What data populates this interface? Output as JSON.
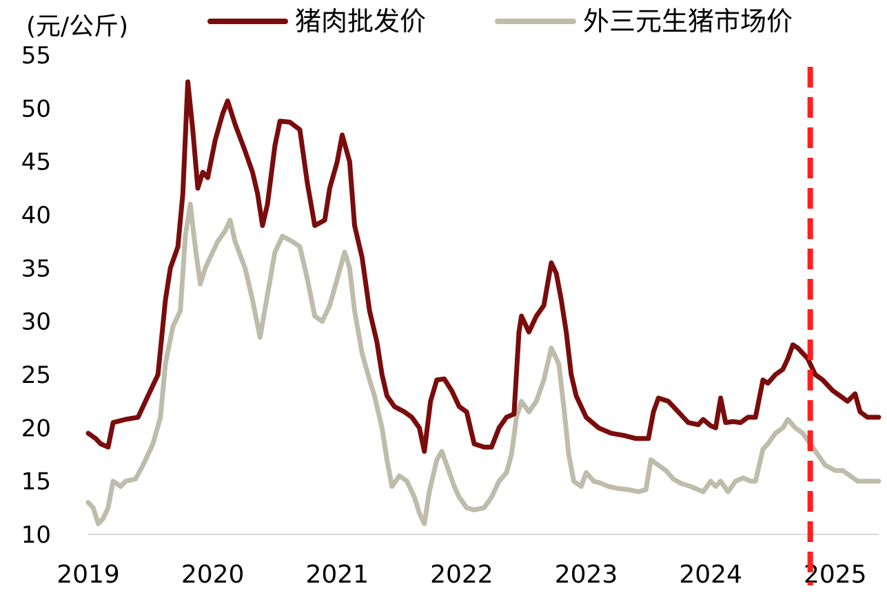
{
  "chart_data": {
    "type": "line",
    "unit_label": "(元/公斤)",
    "ylim": [
      10,
      55
    ],
    "yticks": [
      "10",
      "15",
      "20",
      "25",
      "30",
      "35",
      "40",
      "45",
      "50",
      "55"
    ],
    "xlim": [
      2019.0,
      2025.35
    ],
    "xticks": [
      {
        "label": "2019",
        "x": 2019
      },
      {
        "label": "2020",
        "x": 2020
      },
      {
        "label": "2021",
        "x": 2021
      },
      {
        "label": "2022",
        "x": 2022
      },
      {
        "label": "2023",
        "x": 2023
      },
      {
        "label": "2024",
        "x": 2024
      },
      {
        "label": "2025",
        "x": 2025
      }
    ],
    "legend_position": "top",
    "vline": {
      "x": 2024.8,
      "style": "dashed",
      "color": "#ff1f1f"
    },
    "series": [
      {
        "name": "猪肉批发价",
        "color": "#7a0c0c",
        "points": [
          [
            2019.0,
            19.5
          ],
          [
            2019.06,
            19.0
          ],
          [
            2019.1,
            18.5
          ],
          [
            2019.16,
            18.2
          ],
          [
            2019.2,
            20.5
          ],
          [
            2019.3,
            20.8
          ],
          [
            2019.4,
            21.0
          ],
          [
            2019.48,
            23.0
          ],
          [
            2019.56,
            25.0
          ],
          [
            2019.62,
            32.0
          ],
          [
            2019.66,
            35.0
          ],
          [
            2019.72,
            37.0
          ],
          [
            2019.76,
            42.0
          ],
          [
            2019.8,
            52.5
          ],
          [
            2019.84,
            48.0
          ],
          [
            2019.88,
            42.5
          ],
          [
            2019.92,
            44.0
          ],
          [
            2019.96,
            43.5
          ],
          [
            2020.02,
            47.0
          ],
          [
            2020.08,
            49.5
          ],
          [
            2020.12,
            50.7
          ],
          [
            2020.18,
            48.5
          ],
          [
            2020.26,
            46.0
          ],
          [
            2020.32,
            44.0
          ],
          [
            2020.36,
            42.0
          ],
          [
            2020.4,
            39.0
          ],
          [
            2020.44,
            41.0
          ],
          [
            2020.5,
            46.5
          ],
          [
            2020.54,
            48.8
          ],
          [
            2020.62,
            48.7
          ],
          [
            2020.7,
            48.0
          ],
          [
            2020.76,
            43.0
          ],
          [
            2020.82,
            39.0
          ],
          [
            2020.9,
            39.5
          ],
          [
            2020.94,
            42.5
          ],
          [
            2021.0,
            45.0
          ],
          [
            2021.04,
            47.5
          ],
          [
            2021.1,
            45.0
          ],
          [
            2021.14,
            39.0
          ],
          [
            2021.2,
            36.0
          ],
          [
            2021.26,
            31.0
          ],
          [
            2021.32,
            28.0
          ],
          [
            2021.36,
            25.0
          ],
          [
            2021.4,
            23.0
          ],
          [
            2021.46,
            22.0
          ],
          [
            2021.54,
            21.5
          ],
          [
            2021.6,
            21.0
          ],
          [
            2021.66,
            20.0
          ],
          [
            2021.7,
            17.8
          ],
          [
            2021.75,
            22.5
          ],
          [
            2021.8,
            24.5
          ],
          [
            2021.86,
            24.6
          ],
          [
            2021.92,
            23.5
          ],
          [
            2021.98,
            22.0
          ],
          [
            2022.04,
            21.5
          ],
          [
            2022.1,
            18.5
          ],
          [
            2022.18,
            18.2
          ],
          [
            2022.24,
            18.2
          ],
          [
            2022.3,
            20.0
          ],
          [
            2022.36,
            21.0
          ],
          [
            2022.42,
            21.3
          ],
          [
            2022.46,
            29.0
          ],
          [
            2022.48,
            30.5
          ],
          [
            2022.54,
            29.0
          ],
          [
            2022.6,
            30.5
          ],
          [
            2022.66,
            31.5
          ],
          [
            2022.72,
            35.5
          ],
          [
            2022.76,
            34.5
          ],
          [
            2022.8,
            32.0
          ],
          [
            2022.84,
            29.0
          ],
          [
            2022.88,
            25.0
          ],
          [
            2022.92,
            23.0
          ],
          [
            2022.96,
            22.0
          ],
          [
            2023.0,
            21.0
          ],
          [
            2023.1,
            20.0
          ],
          [
            2023.2,
            19.5
          ],
          [
            2023.3,
            19.3
          ],
          [
            2023.4,
            19.0
          ],
          [
            2023.5,
            19.0
          ],
          [
            2023.54,
            21.5
          ],
          [
            2023.58,
            22.8
          ],
          [
            2023.66,
            22.5
          ],
          [
            2023.74,
            21.5
          ],
          [
            2023.82,
            20.5
          ],
          [
            2023.9,
            20.3
          ],
          [
            2023.94,
            20.8
          ],
          [
            2024.0,
            20.2
          ],
          [
            2024.04,
            20.0
          ],
          [
            2024.08,
            22.8
          ],
          [
            2024.12,
            20.5
          ],
          [
            2024.18,
            20.6
          ],
          [
            2024.24,
            20.5
          ],
          [
            2024.3,
            21.0
          ],
          [
            2024.36,
            21.0
          ],
          [
            2024.42,
            24.5
          ],
          [
            2024.46,
            24.2
          ],
          [
            2024.52,
            25.0
          ],
          [
            2024.58,
            25.5
          ],
          [
            2024.62,
            26.5
          ],
          [
            2024.66,
            27.8
          ],
          [
            2024.7,
            27.5
          ],
          [
            2024.78,
            26.5
          ],
          [
            2024.84,
            25.0
          ],
          [
            2024.9,
            24.5
          ],
          [
            2024.98,
            23.5
          ],
          [
            2025.04,
            23.0
          ],
          [
            2025.1,
            22.5
          ],
          [
            2025.16,
            23.2
          ],
          [
            2025.2,
            21.5
          ],
          [
            2025.26,
            21.0
          ],
          [
            2025.35,
            21.0
          ]
        ]
      },
      {
        "name": "外三元生猪市场价",
        "color": "#bebcaa",
        "points": [
          [
            2019.0,
            13.0
          ],
          [
            2019.04,
            12.5
          ],
          [
            2019.08,
            11.0
          ],
          [
            2019.12,
            11.5
          ],
          [
            2019.16,
            12.5
          ],
          [
            2019.2,
            15.0
          ],
          [
            2019.26,
            14.5
          ],
          [
            2019.3,
            15.0
          ],
          [
            2019.38,
            15.2
          ],
          [
            2019.44,
            16.5
          ],
          [
            2019.52,
            18.5
          ],
          [
            2019.58,
            21.0
          ],
          [
            2019.62,
            26.0
          ],
          [
            2019.68,
            29.5
          ],
          [
            2019.74,
            31.0
          ],
          [
            2019.78,
            38.0
          ],
          [
            2019.82,
            41.0
          ],
          [
            2019.86,
            37.0
          ],
          [
            2019.9,
            33.5
          ],
          [
            2019.94,
            35.0
          ],
          [
            2020.0,
            36.5
          ],
          [
            2020.04,
            37.5
          ],
          [
            2020.1,
            38.5
          ],
          [
            2020.14,
            39.5
          ],
          [
            2020.18,
            37.5
          ],
          [
            2020.26,
            35.0
          ],
          [
            2020.32,
            32.0
          ],
          [
            2020.38,
            28.5
          ],
          [
            2020.44,
            32.5
          ],
          [
            2020.5,
            36.5
          ],
          [
            2020.56,
            38.0
          ],
          [
            2020.64,
            37.5
          ],
          [
            2020.7,
            37.0
          ],
          [
            2020.76,
            34.0
          ],
          [
            2020.82,
            30.5
          ],
          [
            2020.88,
            30.0
          ],
          [
            2020.94,
            31.5
          ],
          [
            2021.0,
            34.0
          ],
          [
            2021.06,
            36.5
          ],
          [
            2021.1,
            35.0
          ],
          [
            2021.14,
            31.0
          ],
          [
            2021.2,
            27.0
          ],
          [
            2021.26,
            24.5
          ],
          [
            2021.3,
            23.0
          ],
          [
            2021.36,
            20.0
          ],
          [
            2021.4,
            17.0
          ],
          [
            2021.44,
            14.5
          ],
          [
            2021.5,
            15.5
          ],
          [
            2021.56,
            15.0
          ],
          [
            2021.62,
            13.5
          ],
          [
            2021.66,
            12.0
          ],
          [
            2021.7,
            11.0
          ],
          [
            2021.74,
            14.0
          ],
          [
            2021.8,
            17.0
          ],
          [
            2021.84,
            17.8
          ],
          [
            2021.88,
            16.5
          ],
          [
            2021.94,
            14.5
          ],
          [
            2021.98,
            13.5
          ],
          [
            2022.04,
            12.5
          ],
          [
            2022.1,
            12.3
          ],
          [
            2022.18,
            12.5
          ],
          [
            2022.24,
            13.5
          ],
          [
            2022.3,
            15.0
          ],
          [
            2022.36,
            15.8
          ],
          [
            2022.4,
            17.5
          ],
          [
            2022.44,
            21.0
          ],
          [
            2022.48,
            22.5
          ],
          [
            2022.54,
            21.5
          ],
          [
            2022.6,
            22.5
          ],
          [
            2022.66,
            24.5
          ],
          [
            2022.72,
            27.5
          ],
          [
            2022.78,
            26.0
          ],
          [
            2022.82,
            22.0
          ],
          [
            2022.86,
            17.5
          ],
          [
            2022.9,
            15.0
          ],
          [
            2022.96,
            14.5
          ],
          [
            2023.0,
            15.8
          ],
          [
            2023.06,
            15.0
          ],
          [
            2023.12,
            14.8
          ],
          [
            2023.18,
            14.5
          ],
          [
            2023.26,
            14.3
          ],
          [
            2023.34,
            14.2
          ],
          [
            2023.42,
            14.0
          ],
          [
            2023.48,
            14.2
          ],
          [
            2023.52,
            17.0
          ],
          [
            2023.58,
            16.5
          ],
          [
            2023.64,
            16.0
          ],
          [
            2023.7,
            15.2
          ],
          [
            2023.76,
            14.8
          ],
          [
            2023.84,
            14.5
          ],
          [
            2023.9,
            14.2
          ],
          [
            2023.94,
            14.0
          ],
          [
            2024.0,
            15.0
          ],
          [
            2024.04,
            14.5
          ],
          [
            2024.08,
            15.0
          ],
          [
            2024.14,
            14.0
          ],
          [
            2024.2,
            15.0
          ],
          [
            2024.26,
            15.3
          ],
          [
            2024.32,
            15.0
          ],
          [
            2024.36,
            15.0
          ],
          [
            2024.42,
            18.0
          ],
          [
            2024.46,
            18.5
          ],
          [
            2024.52,
            19.5
          ],
          [
            2024.58,
            20.0
          ],
          [
            2024.62,
            20.8
          ],
          [
            2024.68,
            20.0
          ],
          [
            2024.74,
            19.5
          ],
          [
            2024.8,
            18.5
          ],
          [
            2024.86,
            17.5
          ],
          [
            2024.92,
            16.5
          ],
          [
            2025.0,
            16.0
          ],
          [
            2025.06,
            16.0
          ],
          [
            2025.12,
            15.5
          ],
          [
            2025.18,
            15.0
          ],
          [
            2025.26,
            15.0
          ],
          [
            2025.35,
            15.0
          ]
        ]
      }
    ]
  }
}
